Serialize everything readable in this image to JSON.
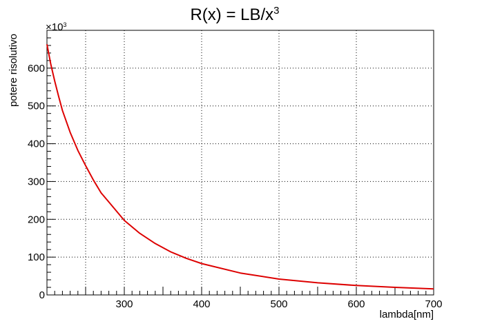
{
  "chart_data": {
    "type": "line",
    "title": "R(x) = LB/x",
    "title_superscript": "3",
    "xlabel": "lambda[nm]",
    "ylabel": "potere risolutivo",
    "y_exponent_base": "×10",
    "y_exponent_power": "3",
    "xlim": [
      200,
      700
    ],
    "ylim": [
      0,
      700
    ],
    "x_ticks": [
      300,
      400,
      500,
      600,
      700
    ],
    "y_ticks": [
      0,
      100,
      200,
      300,
      400,
      500,
      600
    ],
    "grid": true,
    "series": [
      {
        "color": "#dd0000",
        "x": [
          200,
          205,
          210,
          215,
          220,
          230,
          240,
          250,
          260,
          270,
          280,
          300,
          320,
          340,
          360,
          380,
          400,
          450,
          500,
          550,
          600,
          650,
          700
        ],
        "y": [
          663,
          610,
          566,
          526,
          488,
          430,
          382,
          342,
          304,
          270,
          246,
          197,
          163,
          136,
          114,
          97,
          83,
          58,
          42,
          32,
          25,
          20,
          16
        ]
      }
    ]
  }
}
